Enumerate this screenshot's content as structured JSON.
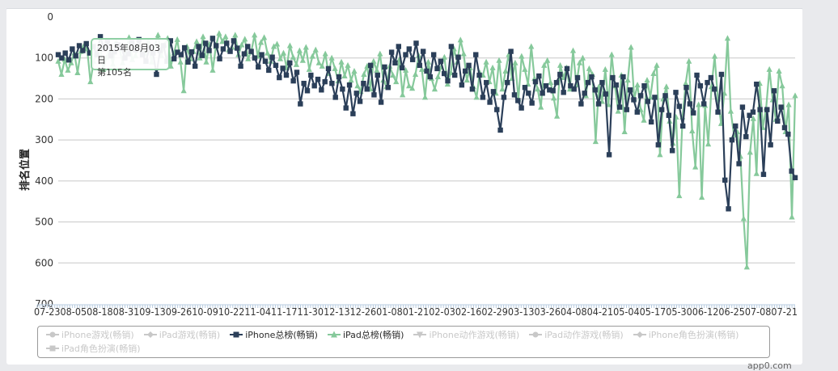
{
  "chart_data": {
    "type": "line",
    "ylabel": "排名位置",
    "y_reversed": true,
    "ylim": [
      0,
      700
    ],
    "y_ticks": [
      0,
      100,
      200,
      300,
      400,
      500,
      600,
      700
    ],
    "x_tick_labels": [
      "07-23",
      "08-05",
      "08-18",
      "08-31",
      "09-13",
      "09-26",
      "10-09",
      "10-22",
      "11-04",
      "11-17",
      "11-30",
      "12-13",
      "12-26",
      "01-08",
      "01-21",
      "02-03",
      "02-16",
      "02-29",
      "03-13",
      "03-26",
      "04-08",
      "04-21",
      "05-04",
      "05-17",
      "05-30",
      "06-12",
      "06-25",
      "07-08",
      "07-21"
    ],
    "x_labels_row": "07-2308-0508-1808-3109-1309-2610-0910-2211-0411-1711-3012-1312-2601-0801-2102-0302-1602-2903-1303-2604-0804-2105-0405-1705-3006-1206-2507-0807-21",
    "legend_placement": "bottom",
    "tooltip": {
      "date": "2015年08月03日",
      "value": "第105名"
    },
    "legend": [
      {
        "name": "iPhone游戏(畅销)",
        "active": false,
        "symbol": "circle"
      },
      {
        "name": "iPad游戏(畅销)",
        "active": false,
        "symbol": "diamond"
      },
      {
        "name": "iPhone总榜(畅销)",
        "active": true,
        "symbol": "square",
        "color": "#2b3f59"
      },
      {
        "name": "iPad总榜(畅销)",
        "active": true,
        "symbol": "triangle",
        "color": "#86c99b"
      },
      {
        "name": "iPhone动作游戏(畅销)",
        "active": false,
        "symbol": "triangle-down"
      },
      {
        "name": "iPad动作游戏(畅销)",
        "active": false,
        "symbol": "circle"
      },
      {
        "name": "iPhone角色扮演(畅销)",
        "active": false,
        "symbol": "diamond"
      },
      {
        "name": "iPad角色扮演(畅销)",
        "active": false,
        "symbol": "square"
      }
    ],
    "series": [
      {
        "name": "iPhone总榜(畅销)",
        "color": "#2b3f59",
        "values": [
          92,
          100,
          88,
          105,
          78,
          95,
          70,
          82,
          65,
          88,
          72,
          92,
          48,
          78,
          60,
          95,
          85,
          68,
          75,
          100,
          90,
          62,
          80,
          55,
          92,
          108,
          75,
          88,
          140,
          82,
          70,
          108,
          58,
          102,
          86,
          92,
          75,
          110,
          85,
          120,
          72,
          94,
          64,
          82,
          52,
          70,
          102,
          78,
          64,
          84,
          58,
          76,
          120,
          90,
          72,
          84,
          100,
          122,
          92,
          108,
          130,
          98,
          118,
          148,
          125,
          142,
          112,
          156,
          135,
          212,
          162,
          180,
          142,
          168,
          152,
          178,
          158,
          126,
          162,
          196,
          146,
          176,
          222,
          166,
          236,
          186,
          206,
          162,
          176,
          118,
          190,
          142,
          208,
          122,
          172,
          86,
          112,
          72,
          124,
          92,
          78,
          104,
          64,
          118,
          84,
          132,
          146,
          92,
          126,
          108,
          138,
          156,
          72,
          142,
          98,
          166,
          132,
          118,
          176,
          92,
          142,
          196,
          160,
          208,
          182,
          226,
          276,
          196,
          160,
          84,
          190,
          204,
          222,
          172,
          186,
          210,
          158,
          144,
          186,
          168,
          178,
          180,
          160,
          140,
          184,
          126,
          168,
          176,
          148,
          212,
          186,
          160,
          146,
          178,
          212,
          160,
          188,
          336,
          148,
          166,
          220,
          146,
          226,
          178,
          202,
          232,
          192,
          168,
          206,
          256,
          196,
          312,
          226,
          192,
          240,
          326,
          184,
          218,
          266,
          172,
          212,
          234,
          142,
          168,
          212,
          160,
          148,
          176,
          232,
          140,
          398,
          468,
          300,
          266,
          358,
          220,
          292,
          240,
          232,
          164,
          226,
          384,
          226,
          312,
          180,
          254,
          220,
          270,
          286,
          376,
          392
        ]
      },
      {
        "name": "iPad总榜(畅销)",
        "color": "#86c99b",
        "values": [
          108,
          140,
          104,
          130,
          112,
          88,
          136,
          84,
          70,
          78,
          158,
          108,
          90,
          72,
          128,
          98,
          82,
          115,
          60,
          76,
          112,
          88,
          50,
          104,
          94,
          66,
          80,
          90,
          60,
          110,
          70,
          44,
          94,
          68,
          52,
          120,
          88,
          55,
          110,
          180,
          72,
          102,
          84,
          60,
          100,
          48,
          110,
          66,
          130,
          72,
          40,
          60,
          48,
          80,
          74,
          44,
          92,
          68,
          54,
          102,
          84,
          44,
          96,
          62,
          50,
          88,
          108,
          72,
          66,
          102,
          88,
          124,
          70,
          98,
          116,
          82,
          106,
          74,
          128,
          96,
          80,
          112,
          120,
          90,
          138,
          100,
          126,
          156,
          110,
          144,
          118,
          154,
          132,
          168,
          182,
          140,
          120,
          176,
          108,
          130,
          90,
          154,
          170,
          120,
          142,
          158,
          104,
          190,
          130,
          168,
          174,
          140,
          94,
          128,
          196,
          110,
          150,
          176,
          146,
          122,
          98,
          164,
          136,
          78,
          110,
          56,
          90,
          154,
          124,
          170,
          196,
          136,
          142,
          110,
          158,
          124,
          186,
          106,
          176,
          132,
          92,
          150,
          112,
          200,
          96,
          128,
          164,
          72,
          150,
          176,
          220,
          118,
          106,
          160,
          198,
          242,
          118,
          148,
          124,
          176,
          82,
          166,
          112,
          100,
          192,
          126,
          140,
          304,
          170,
          206,
          128,
          214,
          92,
          168,
          230,
          142,
          280,
          154,
          74,
          200,
          166,
          226,
          252,
          154,
          196,
          138,
          118,
          336,
          200,
          170,
          254,
          308,
          244,
          436,
          244,
          162,
          108,
          278,
          366,
          214,
          440,
          216,
          310,
          170,
          96,
          200,
          260,
          186,
          52,
          230,
          288,
          280,
          340,
          492,
          610,
          330,
          248,
          382,
          162,
          270,
          222,
          128,
          202,
          250,
          132,
          168,
          280,
          214,
          488,
          192
        ]
      }
    ]
  },
  "watermark": "app0.com"
}
